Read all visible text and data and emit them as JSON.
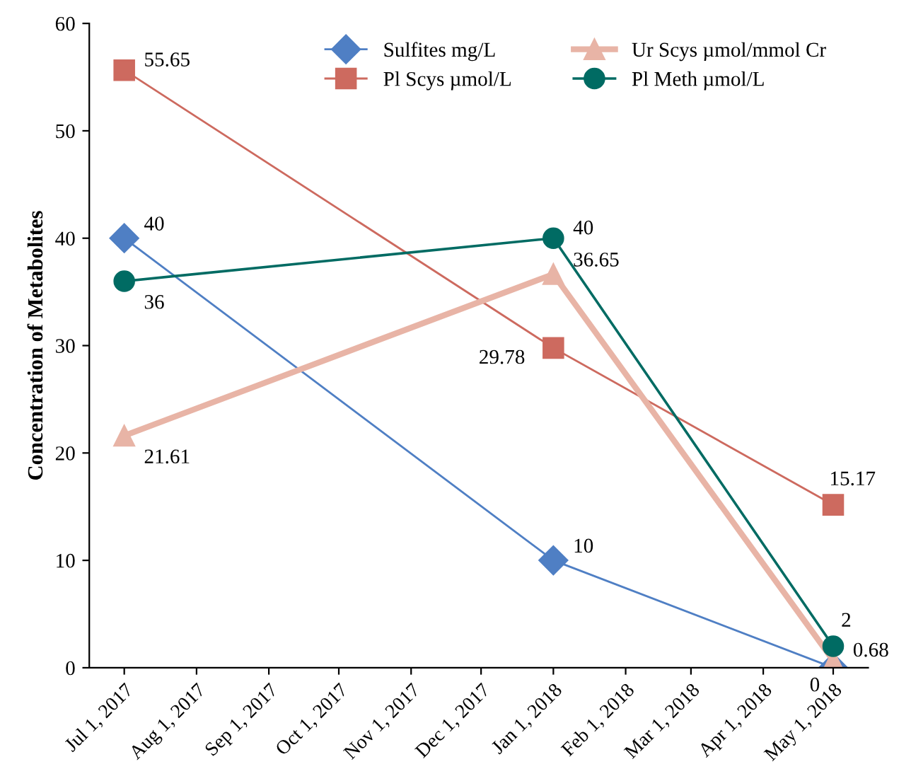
{
  "chart_data": {
    "type": "line",
    "ylabel": "Concentration of Metabolites",
    "x": [
      "2017-07-01",
      "2018-01-01",
      "2018-05-01"
    ],
    "xlim": [
      "2017-06-16",
      "2018-05-16"
    ],
    "xticks": [
      {
        "value": "2017-07-01",
        "label": "Jul 1, 2017"
      },
      {
        "value": "2017-08-01",
        "label": "Aug 1, 2017"
      },
      {
        "value": "2017-09-01",
        "label": "Sep 1, 2017"
      },
      {
        "value": "2017-10-01",
        "label": "Oct 1, 2017"
      },
      {
        "value": "2017-11-01",
        "label": "Nov 1, 2017"
      },
      {
        "value": "2017-12-01",
        "label": "Dec 1, 2017"
      },
      {
        "value": "2018-01-01",
        "label": "Jan 1, 2018"
      },
      {
        "value": "2018-02-01",
        "label": "Feb 1, 2018"
      },
      {
        "value": "2018-03-01",
        "label": "Mar 1, 2018"
      },
      {
        "value": "2018-04-01",
        "label": "Apr 1, 2018"
      },
      {
        "value": "2018-05-01",
        "label": "May 1, 2018"
      }
    ],
    "ylim": [
      0,
      60
    ],
    "yticks": [
      0,
      10,
      20,
      30,
      40,
      50,
      60
    ],
    "series": [
      {
        "name": "Sulfites mg/L",
        "color": "#4f7fc4",
        "marker": "diamond",
        "values": [
          40,
          10,
          0
        ]
      },
      {
        "name": "Pl Scys µmol/L",
        "color": "#cd6a5f",
        "marker": "square",
        "values": [
          55.65,
          29.78,
          15.17
        ]
      },
      {
        "name": "Ur Scys µmol/mmol Cr",
        "color": "#e8b4a6",
        "marker": "triangle",
        "values": [
          21.61,
          36.65,
          0.68
        ]
      },
      {
        "name": "Pl Meth µmol/L",
        "color": "#006b63",
        "marker": "circle",
        "values": [
          36,
          40,
          2
        ]
      }
    ],
    "data_labels": true,
    "legend": "top right",
    "grid": false,
    "line_style": "solid"
  }
}
